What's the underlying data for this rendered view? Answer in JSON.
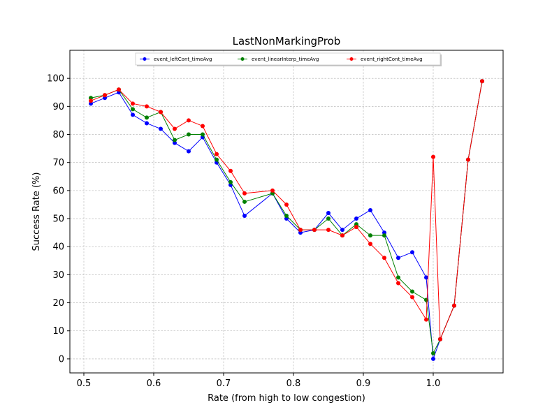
{
  "chart_data": {
    "type": "line",
    "title": "LastNonMarkingProb",
    "xlabel": "Rate (from high to low congestion)",
    "ylabel": "Success Rate (%)",
    "xlim": [
      0.48,
      1.1
    ],
    "ylim": [
      -5,
      110
    ],
    "xticks": [
      0.5,
      0.6,
      0.7,
      0.8,
      0.9,
      1.0
    ],
    "xtick_labels": [
      "0.5",
      "0.6",
      "0.7",
      "0.8",
      "0.9",
      "1.0"
    ],
    "yticks": [
      0,
      10,
      20,
      30,
      40,
      50,
      60,
      70,
      80,
      90,
      100
    ],
    "ytick_labels": [
      "0",
      "10",
      "20",
      "30",
      "40",
      "50",
      "60",
      "70",
      "80",
      "90",
      "100"
    ],
    "grid": true,
    "legend_position": "top-center",
    "series": [
      {
        "name": "event_leftCont_timeAvg",
        "color": "#0000ff",
        "x": [
          0.51,
          0.53,
          0.55,
          0.57,
          0.59,
          0.61,
          0.63,
          0.65,
          0.67,
          0.69,
          0.71,
          0.73,
          0.77,
          0.79,
          0.81,
          0.83,
          0.85,
          0.87,
          0.89,
          0.91,
          0.93,
          0.95,
          0.97,
          0.99,
          1.0,
          1.01,
          1.03,
          1.05,
          1.07
        ],
        "values": [
          91,
          93,
          95,
          87,
          84,
          82,
          77,
          74,
          79,
          70,
          62,
          51,
          59,
          50,
          45,
          46,
          52,
          46,
          50,
          53,
          45,
          36,
          38,
          29,
          0,
          7,
          19,
          71,
          99
        ]
      },
      {
        "name": "event_linearInterp_timeAvg",
        "color": "#008000",
        "x": [
          0.51,
          0.53,
          0.55,
          0.57,
          0.59,
          0.61,
          0.63,
          0.65,
          0.67,
          0.69,
          0.71,
          0.73,
          0.77,
          0.79,
          0.81,
          0.83,
          0.85,
          0.87,
          0.89,
          0.91,
          0.93,
          0.95,
          0.97,
          0.99,
          1.0,
          1.01,
          1.03,
          1.05,
          1.07
        ],
        "values": [
          93,
          94,
          96,
          89,
          86,
          88,
          78,
          80,
          80,
          71,
          63,
          56,
          59,
          51,
          46,
          46,
          50,
          44,
          48,
          44,
          44,
          29,
          24,
          21,
          2,
          7,
          19,
          71,
          99
        ]
      },
      {
        "name": "event_rightCont_timeAvg",
        "color": "#ff0000",
        "x": [
          0.51,
          0.53,
          0.55,
          0.57,
          0.59,
          0.61,
          0.63,
          0.65,
          0.67,
          0.69,
          0.71,
          0.73,
          0.77,
          0.79,
          0.81,
          0.83,
          0.85,
          0.87,
          0.89,
          0.91,
          0.93,
          0.95,
          0.97,
          0.99,
          1.0,
          1.01,
          1.03,
          1.05,
          1.07
        ],
        "values": [
          92,
          94,
          96,
          91,
          90,
          88,
          82,
          85,
          83,
          73,
          67,
          59,
          60,
          55,
          46,
          46,
          46,
          44,
          47,
          41,
          36,
          27,
          22,
          14,
          72,
          7,
          19,
          71,
          99
        ]
      }
    ]
  }
}
